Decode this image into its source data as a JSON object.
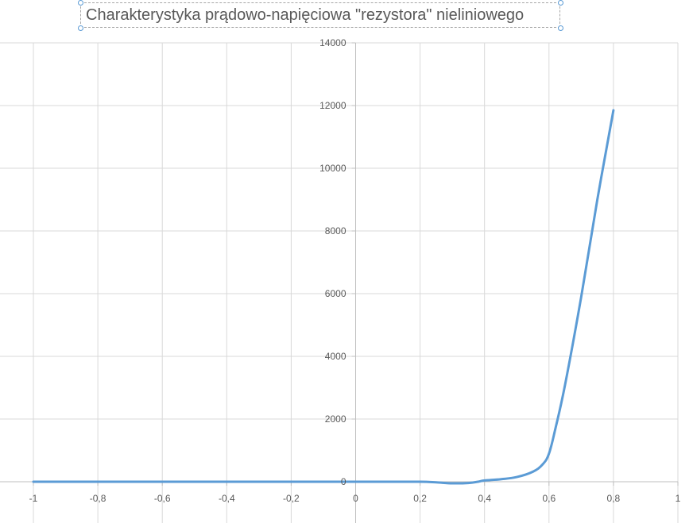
{
  "title": "Charakterystyka prądowo-napięciowa \"rezystora\" nieliniowego",
  "colors": {
    "series": "#5b9bd5",
    "grid": "#d9d9d9",
    "axis": "#bfbfbf",
    "text": "#595959"
  },
  "chart_data": {
    "type": "scatter",
    "title": "Charakterystyka prądowo-napięciowa \"rezystora\" nieliniowego",
    "xlabel": "",
    "ylabel": "",
    "xlim": [
      -1,
      1
    ],
    "ylim": [
      0,
      14000
    ],
    "x_ticks": [
      -1,
      -0.8,
      -0.6,
      -0.4,
      -0.2,
      0,
      0.2,
      0.4,
      0.6,
      0.8,
      1
    ],
    "x_tick_labels": [
      "-1",
      "-0,8",
      "-0,6",
      "-0,4",
      "-0,2",
      "0",
      "0,2",
      "0,4",
      "0,6",
      "0,8",
      "1"
    ],
    "y_ticks": [
      0,
      2000,
      4000,
      6000,
      8000,
      10000,
      12000,
      14000
    ],
    "y_tick_labels": [
      "0",
      "2000",
      "4000",
      "6000",
      "8000",
      "10000",
      "12000",
      "14000"
    ],
    "grid": true,
    "legend": "none",
    "series": [
      {
        "x": [
          -1,
          -0.8,
          -0.6,
          -0.4,
          -0.2,
          0,
          0.1,
          0.2,
          0.25,
          0.3,
          0.35,
          0.38,
          0.4,
          0.45,
          0.5,
          0.55,
          0.58,
          0.6,
          0.62,
          0.65,
          0.7,
          0.75,
          0.8
        ],
        "y": [
          0,
          0,
          0,
          0,
          0,
          0,
          0,
          0,
          -20,
          -50,
          -40,
          0,
          40,
          80,
          150,
          320,
          550,
          900,
          1700,
          3100,
          5900,
          9000,
          11850
        ]
      }
    ]
  }
}
